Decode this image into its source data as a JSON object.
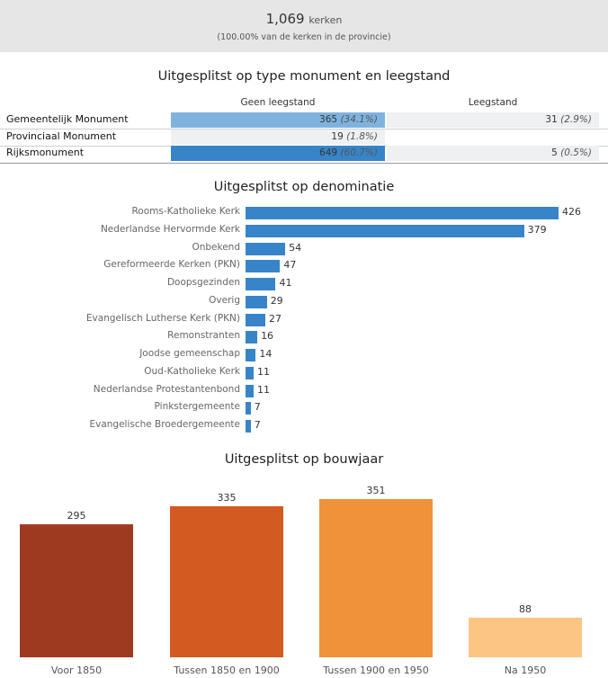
{
  "header": {
    "count": "1,069",
    "unit": "kerken",
    "sub": "(100.00% van de kerken in de provincie)"
  },
  "monument": {
    "title": "Uitgesplitst op type monument en leegstand",
    "columns": [
      "Geen leegstand",
      "Leegstand"
    ],
    "rows": [
      {
        "label": "Gemeentelijk Monument",
        "geen": {
          "value": "365",
          "pct": "(34.1%)",
          "color": "#7fb3de"
        },
        "leeg": {
          "value": "31",
          "pct": "(2.9%)",
          "color": "#eef0f2"
        }
      },
      {
        "label": "Provinciaal Monument",
        "geen": {
          "value": "19",
          "pct": "(1.8%)",
          "color": "#eef0f2"
        },
        "leeg": {
          "value": "",
          "pct": "",
          "color": "#ffffff"
        }
      },
      {
        "label": "Rijksmonument",
        "geen": {
          "value": "649",
          "pct": "(60.7%)",
          "color": "#3785c8"
        },
        "leeg": {
          "value": "5",
          "pct": "(0.5%)",
          "color": "#eef0f2"
        }
      }
    ]
  },
  "chart_data": [
    {
      "type": "bar",
      "orientation": "horizontal",
      "title": "Uitgesplitst op denominatie",
      "categories": [
        "Rooms-Katholieke Kerk",
        "Nederlandse Hervormde Kerk",
        "Onbekend",
        "Gereformeerde Kerken (PKN)",
        "Doopsgezinden",
        "Overig",
        "Evangelisch Lutherse Kerk (PKN)",
        "Remonstranten",
        "Joodse gemeenschap",
        "Oud-Katholieke Kerk",
        "Nederlandse Protestantenbond",
        "Pinkstergemeente",
        "Evangelische Broedergemeente"
      ],
      "values": [
        426,
        379,
        54,
        47,
        41,
        29,
        27,
        16,
        14,
        11,
        11,
        7,
        7
      ],
      "color": "#3785c8"
    },
    {
      "type": "bar",
      "title": "Uitgesplitst op bouwjaar",
      "categories": [
        "Voor 1850",
        "Tussen 1850 en 1900",
        "Tussen 1900 en 1950",
        "Na 1950"
      ],
      "values": [
        295,
        335,
        351,
        88
      ],
      "colors": [
        "#9e3a1f",
        "#d35a20",
        "#f0923a",
        "#fcc583"
      ]
    }
  ]
}
